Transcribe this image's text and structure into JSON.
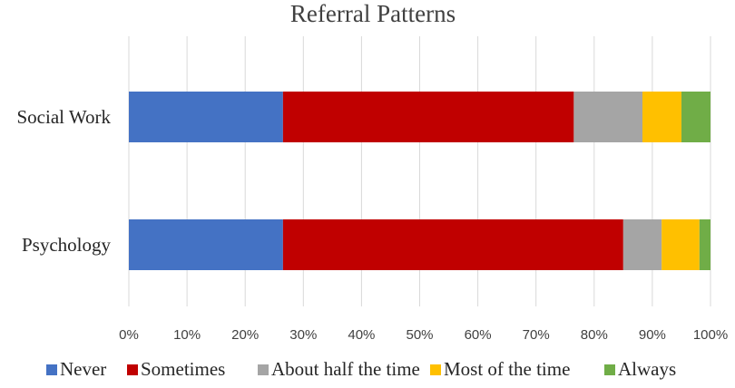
{
  "chart_data": {
    "type": "bar",
    "orientation": "horizontal",
    "stacked": "percent",
    "title": "Referral Patterns",
    "categories": [
      "Social Work",
      "Psychology"
    ],
    "series": [
      {
        "name": "Never",
        "color": "#4472C4",
        "values": [
          26.5,
          26.5
        ]
      },
      {
        "name": "Sometimes",
        "color": "#C00000",
        "values": [
          50.0,
          58.5
        ]
      },
      {
        "name": "About half the time",
        "color": "#A5A5A5",
        "values": [
          11.8,
          6.6
        ]
      },
      {
        "name": "Most of the time",
        "color": "#FFC000",
        "values": [
          6.7,
          6.5
        ]
      },
      {
        "name": "Always",
        "color": "#70AD47",
        "values": [
          5.0,
          1.9
        ]
      }
    ],
    "xlim": [
      0,
      100
    ],
    "x_ticks": [
      "0%",
      "10%",
      "20%",
      "30%",
      "40%",
      "50%",
      "60%",
      "70%",
      "80%",
      "90%",
      "100%"
    ],
    "xlabel": "",
    "ylabel": "",
    "grid": "vertical",
    "legend_position": "bottom"
  }
}
